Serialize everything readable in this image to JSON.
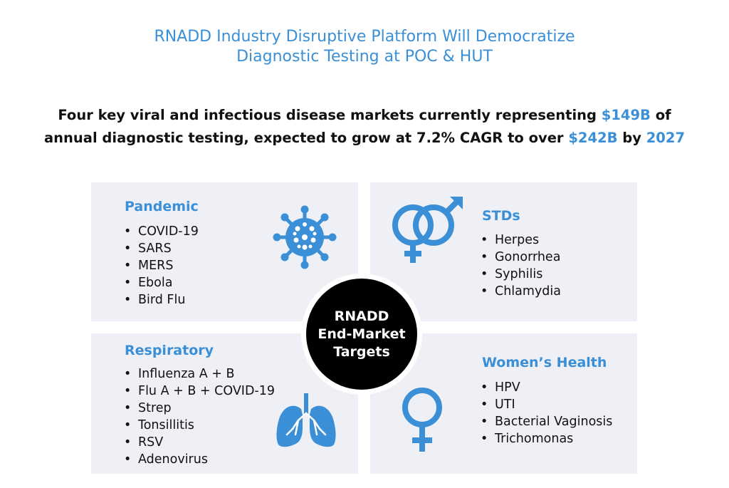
{
  "header": {
    "title_line1": "RNADD Industry Disruptive Platform Will Democratize",
    "title_line2": "Diagnostic Testing at POC & HUT"
  },
  "summary": {
    "line1_text": "Four key viral and infectious disease markets currently representing ",
    "line1_value": "$149B",
    "line1_end": " of",
    "line2_text": "annual diagnostic testing, expected to grow at 7.2% CAGR to over ",
    "line2_value": "$242B",
    "line2_mid": " by ",
    "line2_year": "2027"
  },
  "center": {
    "line1": "RNADD",
    "line2": "End-Market",
    "line3": "Targets"
  },
  "quadrants": {
    "pandemic": {
      "title": "Pandemic",
      "icon": "virus-icon",
      "items": [
        "COVID-19",
        "SARS",
        "MERS",
        "Ebola",
        "Bird Flu"
      ]
    },
    "stds": {
      "title": "STDs",
      "icon": "female-male-symbol-icon",
      "items": [
        "Herpes",
        "Gonorrhea",
        "Syphilis",
        "Chlamydia"
      ]
    },
    "respiratory": {
      "title": "Respiratory",
      "icon": "lungs-icon",
      "items": [
        "Influenza A + B",
        "Flu A + B + COVID-19",
        "Strep",
        "Tonsillitis",
        "RSV",
        "Adenovirus"
      ]
    },
    "womens_health": {
      "title": "Women’s Health",
      "icon": "female-symbol-icon",
      "items": [
        "HPV",
        "UTI",
        "Bacterial Vaginosis",
        "Trichomonas"
      ]
    }
  },
  "colors": {
    "accent": "#3b8fd6",
    "panel": "#eef0f5",
    "center": "#000000"
  }
}
